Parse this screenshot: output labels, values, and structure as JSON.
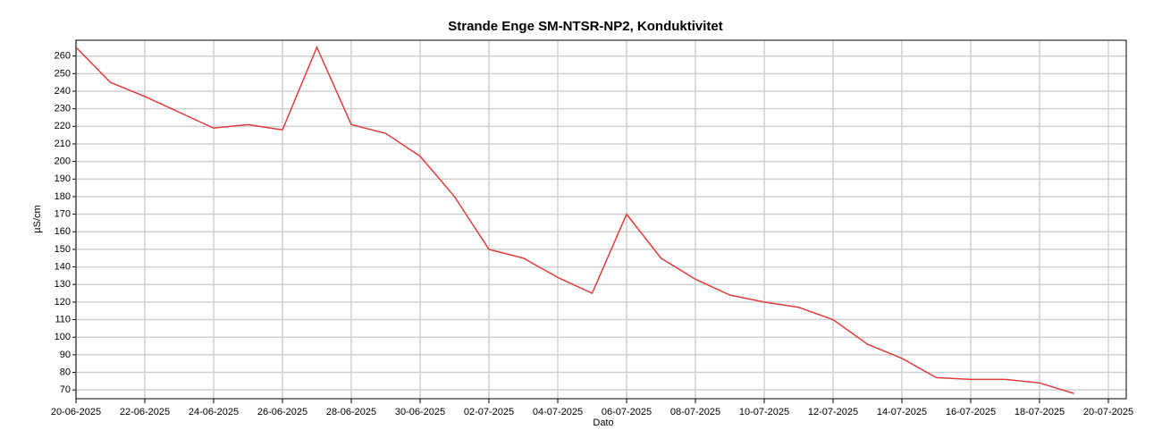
{
  "chart_data": {
    "type": "line",
    "title": "Strande Enge SM-NTSR-NP2, Konduktivitet",
    "x_label": "Dato",
    "y_label": "µS/cm",
    "x": [
      "20-06-2025",
      "21-06-2025",
      "22-06-2025",
      "23-06-2025",
      "24-06-2025",
      "25-06-2025",
      "26-06-2025",
      "27-06-2025",
      "28-06-2025",
      "29-06-2025",
      "30-06-2025",
      "01-07-2025",
      "02-07-2025",
      "03-07-2025",
      "04-07-2025",
      "05-07-2025",
      "06-07-2025",
      "07-07-2025",
      "08-07-2025",
      "09-07-2025",
      "10-07-2025",
      "11-07-2025",
      "12-07-2025",
      "13-07-2025",
      "14-07-2025",
      "15-07-2025",
      "16-07-2025",
      "17-07-2025",
      "18-07-2025",
      "19-07-2025"
    ],
    "series": [
      {
        "name": "Konduktivitet",
        "color": "#e03c3c",
        "values": [
          265,
          245,
          237,
          228,
          219,
          221,
          218,
          265,
          221,
          216,
          203,
          180,
          150,
          145,
          134,
          125,
          170,
          145,
          133,
          124,
          120,
          117,
          110,
          96,
          88,
          77,
          76,
          76,
          74,
          68
        ]
      }
    ],
    "xlim": [
      "20-06-2025",
      "20-07-2025"
    ],
    "xticks": [
      "20-06-2025",
      "22-06-2025",
      "24-06-2025",
      "26-06-2025",
      "28-06-2025",
      "30-06-2025",
      "02-07-2025",
      "04-07-2025",
      "06-07-2025",
      "08-07-2025",
      "10-07-2025",
      "12-07-2025",
      "14-07-2025",
      "16-07-2025",
      "18-07-2025",
      "20-07-2025"
    ],
    "ylim": [
      65,
      269
    ],
    "yticks": [
      70,
      80,
      90,
      100,
      110,
      120,
      130,
      140,
      150,
      160,
      170,
      180,
      190,
      200,
      210,
      220,
      230,
      240,
      250,
      260
    ],
    "grid": true
  }
}
